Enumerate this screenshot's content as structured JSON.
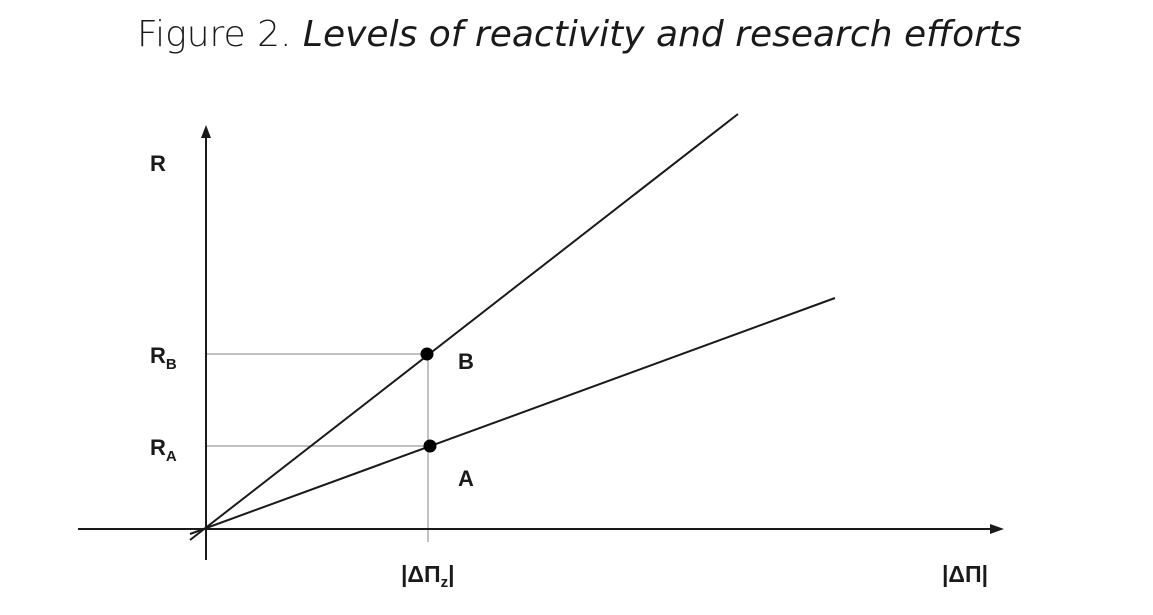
{
  "title": {
    "prefix": "Figure 2.",
    "italic": "Levels of reactivity and research efforts"
  },
  "axes": {
    "y_label": "R",
    "x_label": "|ΔΠ|"
  },
  "levels": {
    "rb_base": "R",
    "rb_sub": "B",
    "ra_base": "R",
    "ra_sub": "A"
  },
  "tick": {
    "base": "|ΔΠ",
    "sub": "z",
    "close": "|"
  },
  "points": {
    "b": "B",
    "a": "A"
  }
}
